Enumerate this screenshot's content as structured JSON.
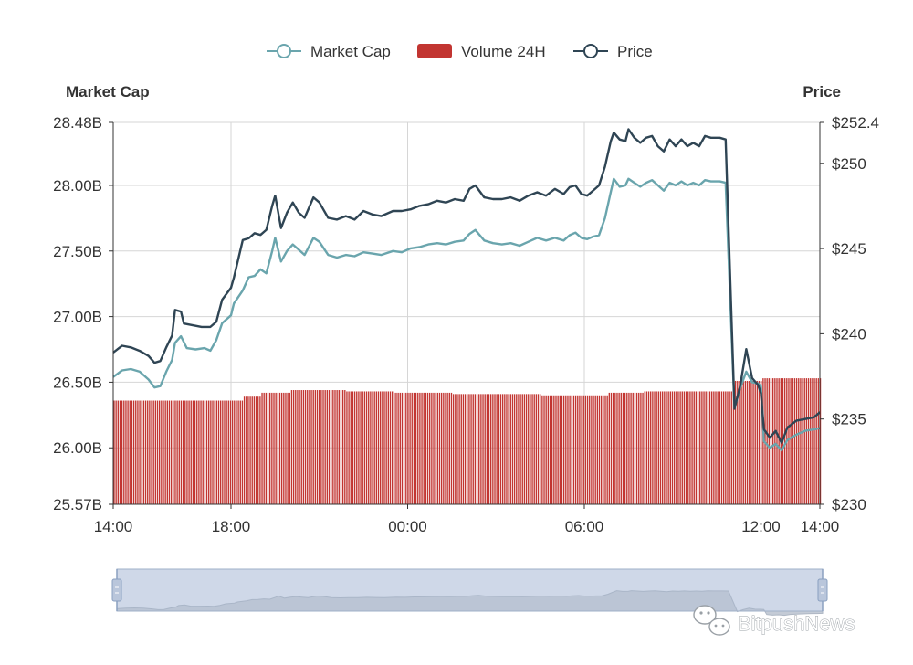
{
  "chart_data": {
    "type": "line",
    "legend": {
      "placement": "top-center",
      "items": [
        {
          "label": "Market Cap",
          "kind": "line",
          "color": "#6aa5ad"
        },
        {
          "label": "Volume 24H",
          "kind": "bar",
          "color": "#c23531"
        },
        {
          "label": "Price",
          "kind": "line",
          "color": "#2f4554"
        }
      ]
    },
    "y_left": {
      "title": "Market Cap",
      "range": [
        25.57,
        28.48
      ],
      "ticks": [
        {
          "v": 28.48,
          "label": "28.48B"
        },
        {
          "v": 28.0,
          "label": "28.00B"
        },
        {
          "v": 27.5,
          "label": "27.50B"
        },
        {
          "v": 27.0,
          "label": "27.00B"
        },
        {
          "v": 26.5,
          "label": "26.50B"
        },
        {
          "v": 26.0,
          "label": "26.00B"
        },
        {
          "v": 25.57,
          "label": "25.57B"
        }
      ]
    },
    "y_right": {
      "title": "Price",
      "range": [
        230,
        252.4
      ],
      "ticks": [
        {
          "v": 252.4,
          "label": "$252.4"
        },
        {
          "v": 250,
          "label": "$250"
        },
        {
          "v": 245,
          "label": "$245"
        },
        {
          "v": 240,
          "label": "$240"
        },
        {
          "v": 235,
          "label": "$235"
        },
        {
          "v": 230,
          "label": "$230"
        }
      ]
    },
    "x_axis": {
      "range": [
        "14:00",
        "14:00 (+1 day)"
      ],
      "ticks": [
        {
          "label": "14:00",
          "hours": 0
        },
        {
          "label": "18:00",
          "hours": 4
        },
        {
          "label": "00:00",
          "hours": 10
        },
        {
          "label": "06:00",
          "hours": 16
        },
        {
          "label": "12:00",
          "hours": 22
        },
        {
          "label": "14:00",
          "hours": 24
        }
      ]
    },
    "grid": true,
    "series": [
      {
        "name": "Market Cap",
        "axis": "left",
        "color": "#6aa5ad",
        "points": [
          [
            0,
            26.54
          ],
          [
            0.3,
            26.59
          ],
          [
            0.6,
            26.6
          ],
          [
            0.9,
            26.58
          ],
          [
            1.2,
            26.52
          ],
          [
            1.4,
            26.46
          ],
          [
            1.6,
            26.47
          ],
          [
            1.8,
            26.58
          ],
          [
            2.0,
            26.67
          ],
          [
            2.1,
            26.8
          ],
          [
            2.3,
            26.85
          ],
          [
            2.5,
            26.76
          ],
          [
            2.8,
            26.75
          ],
          [
            3.1,
            26.76
          ],
          [
            3.3,
            26.74
          ],
          [
            3.5,
            26.82
          ],
          [
            3.7,
            26.95
          ],
          [
            4.0,
            27.01
          ],
          [
            4.1,
            27.1
          ],
          [
            4.4,
            27.2
          ],
          [
            4.6,
            27.3
          ],
          [
            4.8,
            27.31
          ],
          [
            5.0,
            27.36
          ],
          [
            5.2,
            27.33
          ],
          [
            5.4,
            27.5
          ],
          [
            5.5,
            27.6
          ],
          [
            5.7,
            27.42
          ],
          [
            5.9,
            27.5
          ],
          [
            6.1,
            27.55
          ],
          [
            6.3,
            27.51
          ],
          [
            6.5,
            27.47
          ],
          [
            6.8,
            27.6
          ],
          [
            7.0,
            27.57
          ],
          [
            7.3,
            27.47
          ],
          [
            7.6,
            27.45
          ],
          [
            7.9,
            27.47
          ],
          [
            8.2,
            27.46
          ],
          [
            8.5,
            27.49
          ],
          [
            8.8,
            27.48
          ],
          [
            9.1,
            27.47
          ],
          [
            9.5,
            27.5
          ],
          [
            9.8,
            27.49
          ],
          [
            10.1,
            27.52
          ],
          [
            10.4,
            27.53
          ],
          [
            10.7,
            27.55
          ],
          [
            11.0,
            27.56
          ],
          [
            11.3,
            27.55
          ],
          [
            11.6,
            27.57
          ],
          [
            11.9,
            27.58
          ],
          [
            12.1,
            27.63
          ],
          [
            12.3,
            27.66
          ],
          [
            12.6,
            27.58
          ],
          [
            12.9,
            27.56
          ],
          [
            13.2,
            27.55
          ],
          [
            13.5,
            27.56
          ],
          [
            13.8,
            27.54
          ],
          [
            14.1,
            27.57
          ],
          [
            14.4,
            27.6
          ],
          [
            14.7,
            27.58
          ],
          [
            15.0,
            27.6
          ],
          [
            15.3,
            27.58
          ],
          [
            15.5,
            27.62
          ],
          [
            15.7,
            27.64
          ],
          [
            15.9,
            27.6
          ],
          [
            16.1,
            27.59
          ],
          [
            16.3,
            27.61
          ],
          [
            16.5,
            27.62
          ],
          [
            16.7,
            27.75
          ],
          [
            16.9,
            27.95
          ],
          [
            17.0,
            28.05
          ],
          [
            17.2,
            27.99
          ],
          [
            17.4,
            28.0
          ],
          [
            17.5,
            28.05
          ],
          [
            17.7,
            28.02
          ],
          [
            17.9,
            27.99
          ],
          [
            18.1,
            28.02
          ],
          [
            18.3,
            28.04
          ],
          [
            18.5,
            28.0
          ],
          [
            18.7,
            27.96
          ],
          [
            18.9,
            28.02
          ],
          [
            19.1,
            28.0
          ],
          [
            19.3,
            28.03
          ],
          [
            19.5,
            28.0
          ],
          [
            19.7,
            28.02
          ],
          [
            19.9,
            28.0
          ],
          [
            20.1,
            28.04
          ],
          [
            20.3,
            28.03
          ],
          [
            20.6,
            28.03
          ],
          [
            20.8,
            28.02
          ],
          [
            21.1,
            26.3
          ],
          [
            21.3,
            26.46
          ],
          [
            21.5,
            26.58
          ],
          [
            21.7,
            26.5
          ],
          [
            21.9,
            26.49
          ],
          [
            22.0,
            26.47
          ],
          [
            22.1,
            26.05
          ],
          [
            22.3,
            26.0
          ],
          [
            22.5,
            26.03
          ],
          [
            22.7,
            25.98
          ],
          [
            22.9,
            26.06
          ],
          [
            23.2,
            26.1
          ],
          [
            23.5,
            26.13
          ],
          [
            23.8,
            26.14
          ],
          [
            24.0,
            26.15
          ]
        ]
      },
      {
        "name": "Volume 24H",
        "axis": "left",
        "kind": "bar",
        "color": "#c23531",
        "segments": [
          {
            "from": 0,
            "to": 4.4,
            "value": 26.36
          },
          {
            "from": 4.4,
            "to": 5.0,
            "value": 26.39
          },
          {
            "from": 5.0,
            "to": 6.0,
            "value": 26.42
          },
          {
            "from": 6.0,
            "to": 7.9,
            "value": 26.44
          },
          {
            "from": 7.9,
            "to": 9.5,
            "value": 26.43
          },
          {
            "from": 9.5,
            "to": 11.5,
            "value": 26.42
          },
          {
            "from": 11.5,
            "to": 14.5,
            "value": 26.41
          },
          {
            "from": 14.5,
            "to": 16.8,
            "value": 26.4
          },
          {
            "from": 16.8,
            "to": 18.0,
            "value": 26.42
          },
          {
            "from": 18.0,
            "to": 21.0,
            "value": 26.43
          },
          {
            "from": 21.0,
            "to": 22.0,
            "value": 26.51
          },
          {
            "from": 22.0,
            "to": 24.0,
            "value": 26.53
          }
        ]
      },
      {
        "name": "Price",
        "axis": "right",
        "color": "#2f4554",
        "points": [
          [
            0,
            238.9
          ],
          [
            0.3,
            239.3
          ],
          [
            0.6,
            239.2
          ],
          [
            0.9,
            239.0
          ],
          [
            1.2,
            238.7
          ],
          [
            1.4,
            238.3
          ],
          [
            1.6,
            238.4
          ],
          [
            1.8,
            239.2
          ],
          [
            2.0,
            239.9
          ],
          [
            2.1,
            241.4
          ],
          [
            2.3,
            241.3
          ],
          [
            2.4,
            240.6
          ],
          [
            2.7,
            240.5
          ],
          [
            3.0,
            240.4
          ],
          [
            3.3,
            240.4
          ],
          [
            3.5,
            240.7
          ],
          [
            3.7,
            242.0
          ],
          [
            4.0,
            242.7
          ],
          [
            4.1,
            243.3
          ],
          [
            4.4,
            245.5
          ],
          [
            4.6,
            245.6
          ],
          [
            4.8,
            245.9
          ],
          [
            5.0,
            245.8
          ],
          [
            5.2,
            246.1
          ],
          [
            5.4,
            247.5
          ],
          [
            5.5,
            248.1
          ],
          [
            5.7,
            246.2
          ],
          [
            5.9,
            247.1
          ],
          [
            6.1,
            247.7
          ],
          [
            6.3,
            247.1
          ],
          [
            6.5,
            246.8
          ],
          [
            6.8,
            248.0
          ],
          [
            7.0,
            247.7
          ],
          [
            7.3,
            246.8
          ],
          [
            7.6,
            246.7
          ],
          [
            7.9,
            246.9
          ],
          [
            8.2,
            246.7
          ],
          [
            8.5,
            247.2
          ],
          [
            8.8,
            247.0
          ],
          [
            9.1,
            246.9
          ],
          [
            9.5,
            247.2
          ],
          [
            9.8,
            247.2
          ],
          [
            10.1,
            247.3
          ],
          [
            10.4,
            247.5
          ],
          [
            10.7,
            247.6
          ],
          [
            11.0,
            247.8
          ],
          [
            11.3,
            247.7
          ],
          [
            11.6,
            247.9
          ],
          [
            11.9,
            247.8
          ],
          [
            12.1,
            248.5
          ],
          [
            12.3,
            248.7
          ],
          [
            12.6,
            248.0
          ],
          [
            12.9,
            247.9
          ],
          [
            13.2,
            247.9
          ],
          [
            13.5,
            248.0
          ],
          [
            13.8,
            247.8
          ],
          [
            14.1,
            248.1
          ],
          [
            14.4,
            248.3
          ],
          [
            14.7,
            248.1
          ],
          [
            15.0,
            248.5
          ],
          [
            15.3,
            248.2
          ],
          [
            15.5,
            248.6
          ],
          [
            15.7,
            248.7
          ],
          [
            15.9,
            248.2
          ],
          [
            16.1,
            248.1
          ],
          [
            16.3,
            248.4
          ],
          [
            16.5,
            248.7
          ],
          [
            16.7,
            249.8
          ],
          [
            16.9,
            251.3
          ],
          [
            17.0,
            251.8
          ],
          [
            17.2,
            251.4
          ],
          [
            17.4,
            251.3
          ],
          [
            17.5,
            252.0
          ],
          [
            17.7,
            251.5
          ],
          [
            17.9,
            251.2
          ],
          [
            18.1,
            251.5
          ],
          [
            18.3,
            251.6
          ],
          [
            18.5,
            251.0
          ],
          [
            18.7,
            250.7
          ],
          [
            18.9,
            251.4
          ],
          [
            19.1,
            251.0
          ],
          [
            19.3,
            251.4
          ],
          [
            19.5,
            251.0
          ],
          [
            19.7,
            251.2
          ],
          [
            19.9,
            251.0
          ],
          [
            20.1,
            251.6
          ],
          [
            20.3,
            251.5
          ],
          [
            20.6,
            251.5
          ],
          [
            20.8,
            251.4
          ],
          [
            21.1,
            235.6
          ],
          [
            21.3,
            237.0
          ],
          [
            21.5,
            239.1
          ],
          [
            21.7,
            237.4
          ],
          [
            21.9,
            237.0
          ],
          [
            22.0,
            236.5
          ],
          [
            22.1,
            234.4
          ],
          [
            22.3,
            233.9
          ],
          [
            22.5,
            234.3
          ],
          [
            22.7,
            233.6
          ],
          [
            22.9,
            234.5
          ],
          [
            23.2,
            234.9
          ],
          [
            23.5,
            235.0
          ],
          [
            23.8,
            235.1
          ],
          [
            24.0,
            235.4
          ]
        ]
      }
    ]
  },
  "data_zoom": {
    "range_start_percent": 0,
    "range_end_percent": 100
  },
  "watermark": {
    "text": "BitpushNews",
    "icon": "wechat-icon"
  }
}
